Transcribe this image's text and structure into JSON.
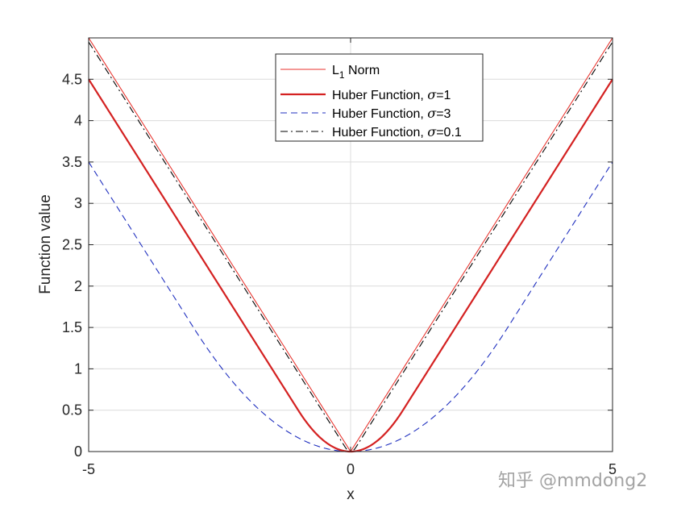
{
  "chart_data": {
    "type": "line",
    "title": "",
    "xlabel": "x",
    "ylabel": "Function value",
    "xlim": [
      -5,
      5
    ],
    "ylim": [
      0,
      5
    ],
    "xticks": [
      -5,
      0,
      5
    ],
    "xtick_labels": [
      "-5",
      "0",
      "5"
    ],
    "yticks": [
      0,
      0.5,
      1,
      1.5,
      2,
      2.5,
      3,
      3.5,
      4,
      4.5
    ],
    "ytick_labels": [
      "0",
      "0.5",
      "1",
      "1.5",
      "2",
      "2.5",
      "3",
      "3.5",
      "4",
      "4.5"
    ],
    "grid": true,
    "legend_position": "top-center",
    "series": [
      {
        "name": "L1 Norm",
        "legend_main": "L",
        "legend_sub": "1",
        "legend_rest": " Norm",
        "color": "#e8322c",
        "style": "solid-thin",
        "x": [
          -5,
          0,
          5
        ],
        "y": [
          5,
          0,
          5
        ]
      },
      {
        "name": "Huber Function, σ=1",
        "legend_prefix": "Huber Function, ",
        "legend_sigma": "σ",
        "legend_suffix": "=1",
        "color": "#d42121",
        "style": "solid-thick",
        "x": [
          -5,
          -4,
          -3,
          -2,
          -1,
          -0.5,
          0,
          0.5,
          1,
          2,
          3,
          4,
          5
        ],
        "y": [
          4.5,
          3.5,
          2.5,
          1.5,
          0.5,
          0.125,
          0,
          0.125,
          0.5,
          1.5,
          2.5,
          3.5,
          4.5
        ]
      },
      {
        "name": "Huber Function, σ=3",
        "legend_prefix": "Huber Function, ",
        "legend_sigma": "σ",
        "legend_suffix": "=3",
        "color": "#1f2fbf",
        "style": "dashed",
        "x": [
          -5,
          -4,
          -3,
          -2,
          -1,
          0,
          1,
          2,
          3,
          4,
          5
        ],
        "y": [
          3.5,
          2.5,
          1.5,
          0.667,
          0.167,
          0,
          0.167,
          0.667,
          1.5,
          2.5,
          3.5
        ]
      },
      {
        "name": "Huber Function, σ=0.1",
        "legend_prefix": "Huber Function, ",
        "legend_sigma": "σ",
        "legend_suffix": "=0.1",
        "color": "#000000",
        "style": "dash-dot",
        "x": [
          -5,
          -1,
          -0.1,
          0,
          0.1,
          1,
          5
        ],
        "y": [
          4.95,
          0.95,
          0.05,
          0,
          0.05,
          0.95,
          4.95
        ]
      }
    ]
  },
  "watermark": "知乎 @mmdong2"
}
